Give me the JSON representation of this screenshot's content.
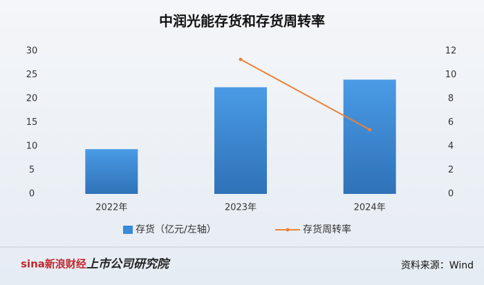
{
  "chart_data": {
    "type": "bar",
    "title": "中润光能存货和存货周转率",
    "categories": [
      "2022年",
      "2023年",
      "2024年"
    ],
    "series": [
      {
        "name": "存货（亿元/左轴）",
        "type": "bar",
        "color": "#3a8ad6",
        "values": [
          9.4,
          22.4,
          24.0
        ]
      },
      {
        "name": "存货周转率",
        "type": "line",
        "color": "#e8823a",
        "values": [
          null,
          11.3,
          5.4
        ],
        "axis": "y2"
      }
    ],
    "ylim": [
      0,
      30
    ],
    "yticks": [
      0,
      5,
      10,
      15,
      20,
      25,
      30
    ],
    "y2lim": [
      0,
      12
    ],
    "y2ticks": [
      0,
      2,
      4,
      6,
      8,
      10,
      12
    ],
    "grid": false,
    "legend": "bottom"
  },
  "footer": {
    "logo_left": "sina新浪财经",
    "logo_right": "上市公司研究院",
    "source": "资料来源：Wind"
  }
}
